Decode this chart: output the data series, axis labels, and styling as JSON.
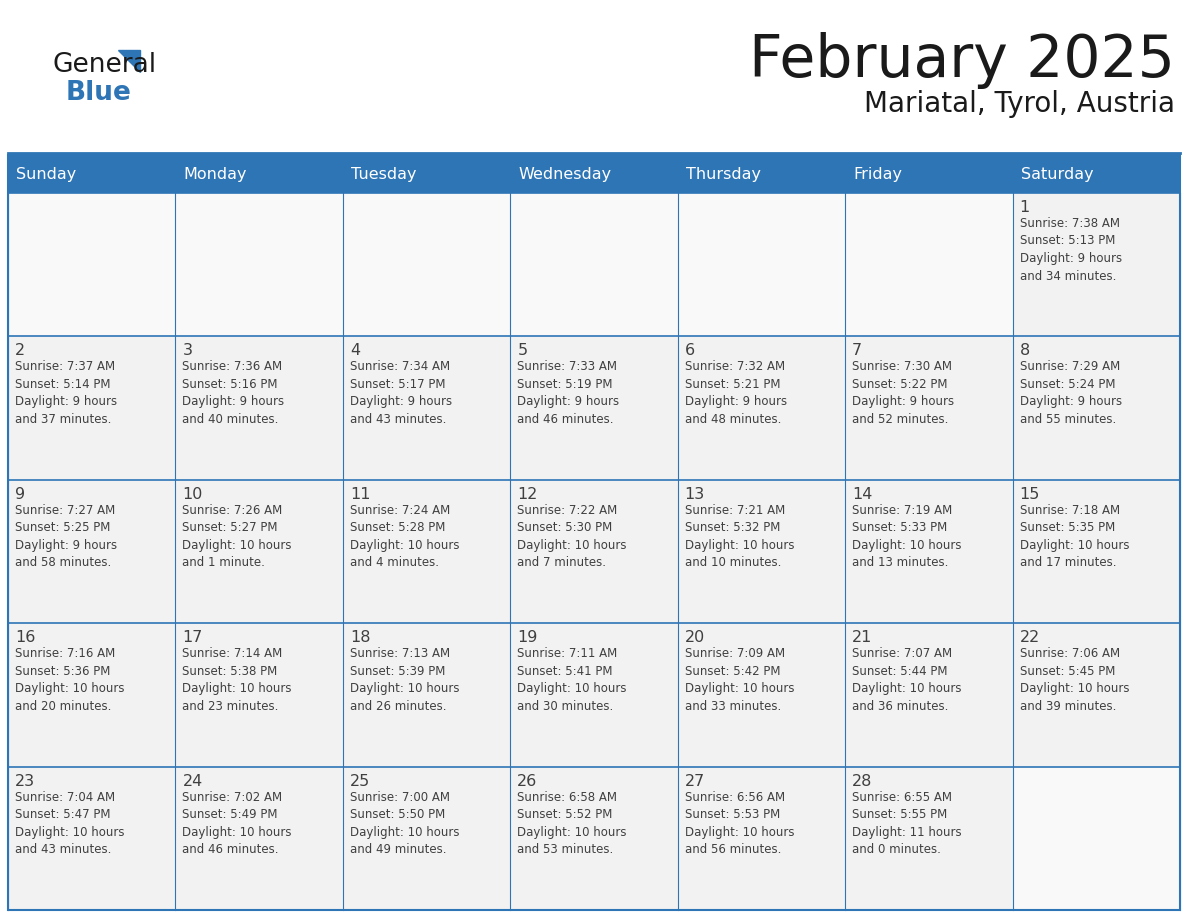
{
  "title": "February 2025",
  "subtitle": "Mariatal, Tyrol, Austria",
  "header_bg": "#2E75B6",
  "header_text": "#FFFFFF",
  "cell_bg": "#F2F2F2",
  "empty_cell_bg": "#F2F2F2",
  "border_color": "#2E75B6",
  "text_color": "#404040",
  "days_of_week": [
    "Sunday",
    "Monday",
    "Tuesday",
    "Wednesday",
    "Thursday",
    "Friday",
    "Saturday"
  ],
  "weeks": [
    [
      {
        "day": null,
        "info": null
      },
      {
        "day": null,
        "info": null
      },
      {
        "day": null,
        "info": null
      },
      {
        "day": null,
        "info": null
      },
      {
        "day": null,
        "info": null
      },
      {
        "day": null,
        "info": null
      },
      {
        "day": 1,
        "info": "Sunrise: 7:38 AM\nSunset: 5:13 PM\nDaylight: 9 hours\nand 34 minutes."
      }
    ],
    [
      {
        "day": 2,
        "info": "Sunrise: 7:37 AM\nSunset: 5:14 PM\nDaylight: 9 hours\nand 37 minutes."
      },
      {
        "day": 3,
        "info": "Sunrise: 7:36 AM\nSunset: 5:16 PM\nDaylight: 9 hours\nand 40 minutes."
      },
      {
        "day": 4,
        "info": "Sunrise: 7:34 AM\nSunset: 5:17 PM\nDaylight: 9 hours\nand 43 minutes."
      },
      {
        "day": 5,
        "info": "Sunrise: 7:33 AM\nSunset: 5:19 PM\nDaylight: 9 hours\nand 46 minutes."
      },
      {
        "day": 6,
        "info": "Sunrise: 7:32 AM\nSunset: 5:21 PM\nDaylight: 9 hours\nand 48 minutes."
      },
      {
        "day": 7,
        "info": "Sunrise: 7:30 AM\nSunset: 5:22 PM\nDaylight: 9 hours\nand 52 minutes."
      },
      {
        "day": 8,
        "info": "Sunrise: 7:29 AM\nSunset: 5:24 PM\nDaylight: 9 hours\nand 55 minutes."
      }
    ],
    [
      {
        "day": 9,
        "info": "Sunrise: 7:27 AM\nSunset: 5:25 PM\nDaylight: 9 hours\nand 58 minutes."
      },
      {
        "day": 10,
        "info": "Sunrise: 7:26 AM\nSunset: 5:27 PM\nDaylight: 10 hours\nand 1 minute."
      },
      {
        "day": 11,
        "info": "Sunrise: 7:24 AM\nSunset: 5:28 PM\nDaylight: 10 hours\nand 4 minutes."
      },
      {
        "day": 12,
        "info": "Sunrise: 7:22 AM\nSunset: 5:30 PM\nDaylight: 10 hours\nand 7 minutes."
      },
      {
        "day": 13,
        "info": "Sunrise: 7:21 AM\nSunset: 5:32 PM\nDaylight: 10 hours\nand 10 minutes."
      },
      {
        "day": 14,
        "info": "Sunrise: 7:19 AM\nSunset: 5:33 PM\nDaylight: 10 hours\nand 13 minutes."
      },
      {
        "day": 15,
        "info": "Sunrise: 7:18 AM\nSunset: 5:35 PM\nDaylight: 10 hours\nand 17 minutes."
      }
    ],
    [
      {
        "day": 16,
        "info": "Sunrise: 7:16 AM\nSunset: 5:36 PM\nDaylight: 10 hours\nand 20 minutes."
      },
      {
        "day": 17,
        "info": "Sunrise: 7:14 AM\nSunset: 5:38 PM\nDaylight: 10 hours\nand 23 minutes."
      },
      {
        "day": 18,
        "info": "Sunrise: 7:13 AM\nSunset: 5:39 PM\nDaylight: 10 hours\nand 26 minutes."
      },
      {
        "day": 19,
        "info": "Sunrise: 7:11 AM\nSunset: 5:41 PM\nDaylight: 10 hours\nand 30 minutes."
      },
      {
        "day": 20,
        "info": "Sunrise: 7:09 AM\nSunset: 5:42 PM\nDaylight: 10 hours\nand 33 minutes."
      },
      {
        "day": 21,
        "info": "Sunrise: 7:07 AM\nSunset: 5:44 PM\nDaylight: 10 hours\nand 36 minutes."
      },
      {
        "day": 22,
        "info": "Sunrise: 7:06 AM\nSunset: 5:45 PM\nDaylight: 10 hours\nand 39 minutes."
      }
    ],
    [
      {
        "day": 23,
        "info": "Sunrise: 7:04 AM\nSunset: 5:47 PM\nDaylight: 10 hours\nand 43 minutes."
      },
      {
        "day": 24,
        "info": "Sunrise: 7:02 AM\nSunset: 5:49 PM\nDaylight: 10 hours\nand 46 minutes."
      },
      {
        "day": 25,
        "info": "Sunrise: 7:00 AM\nSunset: 5:50 PM\nDaylight: 10 hours\nand 49 minutes."
      },
      {
        "day": 26,
        "info": "Sunrise: 6:58 AM\nSunset: 5:52 PM\nDaylight: 10 hours\nand 53 minutes."
      },
      {
        "day": 27,
        "info": "Sunrise: 6:56 AM\nSunset: 5:53 PM\nDaylight: 10 hours\nand 56 minutes."
      },
      {
        "day": 28,
        "info": "Sunrise: 6:55 AM\nSunset: 5:55 PM\nDaylight: 11 hours\nand 0 minutes."
      },
      {
        "day": null,
        "info": null
      }
    ]
  ]
}
